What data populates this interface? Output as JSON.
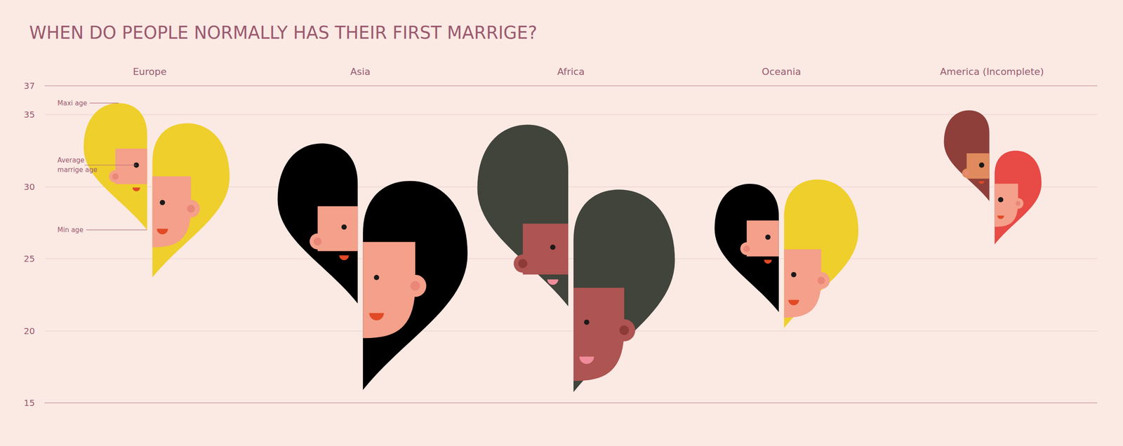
{
  "chart_data": {
    "type": "range",
    "title": "WHEN DO PEOPLE NORMALLY HAS THEIR FIRST MARRIGE?",
    "categories": [
      "Europe",
      "Asia",
      "Africa",
      "Oceania",
      "America (Incomplete)"
    ],
    "series": [
      {
        "colors": [
          "#EFCF2B",
          "#000000",
          "#40443A",
          "#000000",
          "#8E3F3A"
        ],
        "max": [
          35.8,
          33.0,
          34.3,
          30.2,
          35.3
        ],
        "average": [
          31.5,
          27.2,
          25.8,
          26.5,
          31.5
        ],
        "min": [
          27.0,
          21.9,
          21.7,
          21.3,
          29.0
        ]
      },
      {
        "colors": [
          "#EFCF2B",
          "#000000",
          "#40443A",
          "#EFCF2B",
          "#E84A45"
        ],
        "max": [
          34.4,
          30.4,
          29.8,
          30.5,
          32.5
        ],
        "average": [
          28.9,
          23.7,
          20.6,
          23.9,
          29.1
        ],
        "min": [
          23.7,
          15.9,
          15.75,
          20.2,
          26.0
        ]
      }
    ],
    "annotations": {
      "max": "Maxi age",
      "average": "Average marrige age",
      "min": "Min age"
    },
    "ylim": [
      15,
      37
    ],
    "yticks": [
      15,
      20,
      25,
      30,
      35,
      37
    ],
    "grid": true
  }
}
